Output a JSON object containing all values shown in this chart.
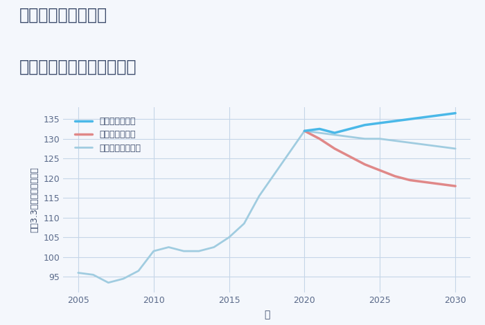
{
  "title_line1": "兵庫県姫路市岡田の",
  "title_line2": "中古マンションの価格推移",
  "xlabel": "年",
  "ylabel": "平（3.3㎡）単価（万円）",
  "xlim": [
    2004,
    2031
  ],
  "ylim": [
    91,
    138
  ],
  "yticks": [
    95,
    100,
    105,
    110,
    115,
    120,
    125,
    130,
    135
  ],
  "xticks": [
    2005,
    2010,
    2015,
    2020,
    2025,
    2030
  ],
  "background_color": "#f4f7fc",
  "plot_bg_color": "#f4f7fc",
  "grid_color": "#c5d5e8",
  "title_color": "#3a4a6a",
  "axis_color": "#3a4a6a",
  "tick_color": "#5a6a8a",
  "legend": [
    "グッドシナリオ",
    "バッドシナリオ",
    "ノーマルシナリオ"
  ],
  "good_color": "#4ab8e8",
  "bad_color": "#e08888",
  "normal_color": "#a0cce0",
  "historical_color": "#a0cce0",
  "historical_x": [
    2005,
    2006,
    2007,
    2008,
    2009,
    2010,
    2011,
    2012,
    2013,
    2014,
    2015,
    2016,
    2017,
    2018,
    2019,
    2020
  ],
  "historical_y": [
    96,
    95.5,
    93.5,
    94.5,
    96.5,
    101.5,
    102.5,
    101.5,
    101.5,
    102.5,
    105,
    108.5,
    115.5,
    121,
    126.5,
    132
  ],
  "good_x": [
    2020,
    2021,
    2022,
    2023,
    2024,
    2025,
    2026,
    2027,
    2028,
    2029,
    2030
  ],
  "good_y": [
    132,
    132.5,
    131.5,
    132.5,
    133.5,
    134,
    134.5,
    135,
    135.5,
    136,
    136.5
  ],
  "bad_x": [
    2020,
    2021,
    2022,
    2023,
    2024,
    2025,
    2026,
    2027,
    2028,
    2029,
    2030
  ],
  "bad_y": [
    132,
    130,
    127.5,
    125.5,
    123.5,
    122,
    120.5,
    119.5,
    119,
    118.5,
    118
  ],
  "normal_x": [
    2020,
    2021,
    2022,
    2023,
    2024,
    2025,
    2026,
    2027,
    2028,
    2029,
    2030
  ],
  "normal_y": [
    132,
    131.5,
    131,
    130.5,
    130,
    130,
    129.5,
    129,
    128.5,
    128,
    127.5
  ]
}
